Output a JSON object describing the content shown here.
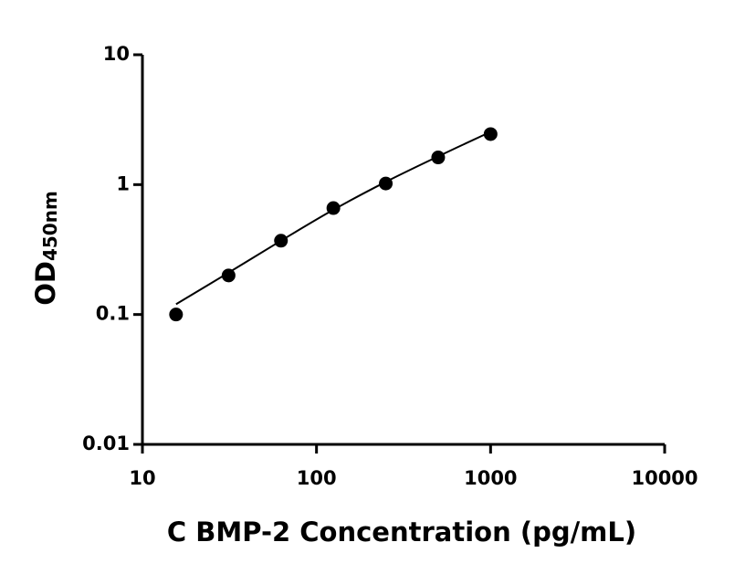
{
  "chart_data": {
    "type": "scatter",
    "xlabel": "C BMP-2 Concentration (pg/mL)",
    "ylabel": "OD",
    "ylabel_subscript": "450nm",
    "x": [
      15.6,
      31.25,
      62.5,
      125,
      250,
      500,
      1000
    ],
    "series": [
      {
        "color": "#000000",
        "values": [
          0.1,
          0.2,
          0.37,
          0.66,
          1.02,
          1.62,
          2.45
        ]
      }
    ],
    "fit": {
      "color": "#000000",
      "x": [
        15.6,
        31.25,
        62.5,
        125,
        250,
        500,
        1000
      ],
      "values": [
        0.12,
        0.21,
        0.37,
        0.64,
        1.05,
        1.65,
        2.55
      ]
    },
    "xlog": true,
    "ylog": true,
    "xlim": [
      10,
      10000
    ],
    "ylim": [
      0.01,
      10
    ],
    "xticks": [
      10,
      100,
      1000,
      10000
    ],
    "yticks": [
      0.01,
      0.1,
      1,
      10
    ],
    "grid": false
  }
}
